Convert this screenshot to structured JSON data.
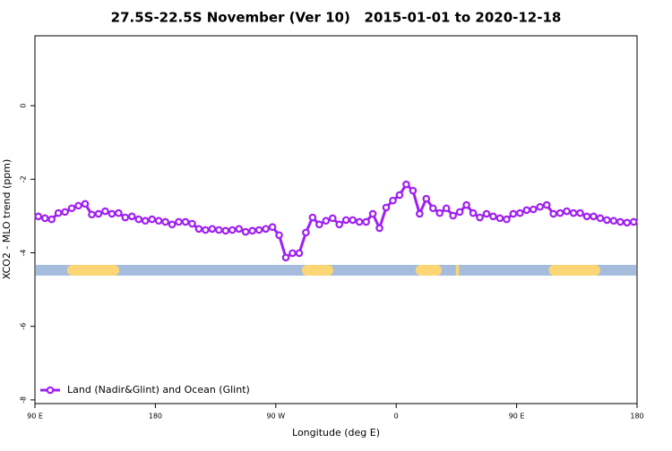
{
  "chart_data": {
    "type": "line",
    "title": "27.5S-22.5S November (Ver 10)   2015-01-01 to 2020-12-18",
    "x_label": "Longitude (deg E)",
    "y_label": "XCO2 - MLO trend (ppm)",
    "xlim": [
      90,
      540
    ],
    "ylim": [
      -8.1,
      1.9
    ],
    "xticks": [
      {
        "value": 90,
        "label": "90 E"
      },
      {
        "value": 180,
        "label": "180"
      },
      {
        "value": 270,
        "label": "90 W"
      },
      {
        "value": 360,
        "label": "0"
      },
      {
        "value": 450,
        "label": "90 E"
      },
      {
        "value": 540,
        "label": "180"
      }
    ],
    "yticks": [
      0,
      -2,
      -4,
      -6,
      -8
    ],
    "legend_position": "bottom-left",
    "x": [
      92.5,
      97.5,
      102.5,
      107.5,
      112.5,
      117.5,
      122.5,
      127.5,
      132.5,
      137.5,
      142.5,
      147.5,
      152.5,
      157.5,
      162.5,
      167.5,
      172.5,
      177.5,
      182.5,
      187.5,
      192.5,
      197.5,
      202.5,
      207.5,
      212.5,
      217.5,
      222.5,
      227.5,
      232.5,
      237.5,
      242.5,
      247.5,
      252.5,
      257.5,
      262.5,
      267.5,
      272.5,
      277.5,
      282.5,
      287.5,
      292.5,
      297.5,
      302.5,
      307.5,
      312.5,
      317.5,
      322.5,
      327.5,
      332.5,
      337.5,
      342.5,
      347.5,
      352.5,
      357.5,
      362.5,
      367.5,
      372.5,
      377.5,
      382.5,
      387.5,
      392.5,
      397.5,
      402.5,
      407.5,
      412.5,
      417.5,
      422.5,
      427.5,
      432.5,
      437.5,
      442.5,
      447.5,
      452.5,
      457.5,
      462.5,
      467.5,
      472.5,
      477.5,
      482.5,
      487.5,
      492.5,
      497.5,
      502.5,
      507.5,
      512.5,
      517.5,
      522.5,
      527.5,
      532.5,
      537.5
    ],
    "series": [
      {
        "name": "Land (Nadir&Glint) and Ocean (Glint)",
        "color": "#a020f0",
        "values": [
          -3.01,
          -3.06,
          -3.09,
          -2.92,
          -2.89,
          -2.79,
          -2.72,
          -2.67,
          -2.96,
          -2.94,
          -2.87,
          -2.94,
          -2.92,
          -3.04,
          -3.01,
          -3.09,
          -3.13,
          -3.09,
          -3.13,
          -3.16,
          -3.23,
          -3.16,
          -3.16,
          -3.21,
          -3.35,
          -3.38,
          -3.35,
          -3.38,
          -3.4,
          -3.38,
          -3.35,
          -3.43,
          -3.4,
          -3.38,
          -3.35,
          -3.3,
          -3.52,
          -4.13,
          -4.01,
          -4.01,
          -3.45,
          -3.04,
          -3.23,
          -3.13,
          -3.06,
          -3.23,
          -3.11,
          -3.11,
          -3.16,
          -3.16,
          -2.94,
          -3.33,
          -2.77,
          -2.58,
          -2.43,
          -2.14,
          -2.31,
          -2.94,
          -2.53,
          -2.79,
          -2.92,
          -2.79,
          -2.99,
          -2.89,
          -2.7,
          -2.92,
          -3.04,
          -2.94,
          -3.01,
          -3.06,
          -3.09,
          -2.94,
          -2.92,
          -2.84,
          -2.82,
          -2.75,
          -2.7,
          -2.94,
          -2.92,
          -2.87,
          -2.92,
          -2.92,
          -3.01,
          -3.01,
          -3.06,
          -3.11,
          -3.13,
          -3.16,
          -3.18,
          -3.16
        ]
      }
    ],
    "surface_mask": {
      "ocean_color": "#a5bcdc",
      "land_color": "#fcd674",
      "land": [
        [
          114,
          153
        ],
        [
          289.5,
          313
        ],
        [
          374.5,
          394
        ],
        [
          404.5,
          407
        ],
        [
          474,
          512.5
        ]
      ]
    }
  }
}
